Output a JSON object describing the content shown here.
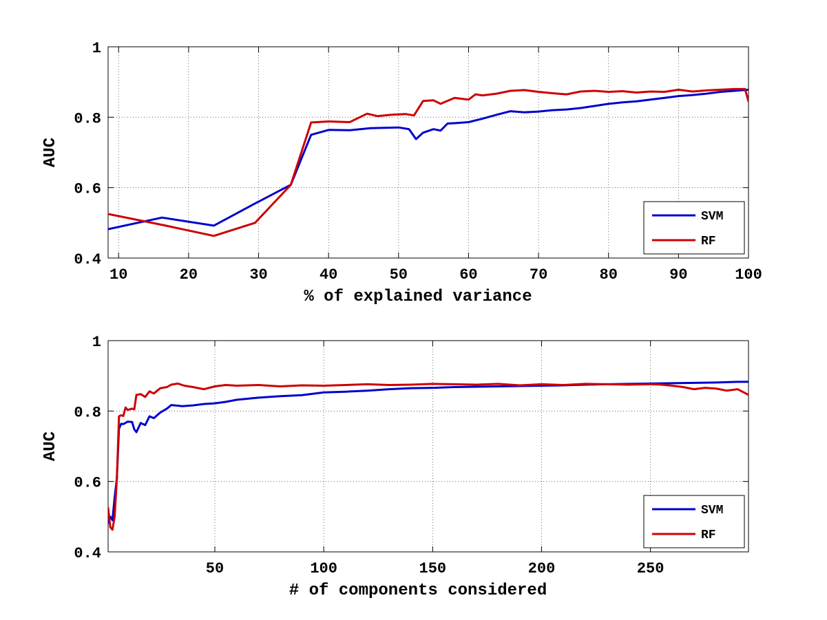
{
  "chart_data": [
    {
      "type": "line",
      "title": "",
      "xlabel": "% of explained variance",
      "ylabel": "AUC",
      "xlim": [
        8.5,
        100
      ],
      "ylim": [
        0.4,
        1.0
      ],
      "xticks": [
        10,
        20,
        30,
        40,
        50,
        60,
        70,
        80,
        90,
        100
      ],
      "xtick_labels": [
        "10",
        "20",
        "30",
        "40",
        "50",
        "60",
        "70",
        "80",
        "90",
        "100"
      ],
      "yticks": [
        0.4,
        0.6,
        0.8,
        1.0
      ],
      "ytick_labels": [
        "0.4",
        "0.6",
        "0.8",
        "1"
      ],
      "grid": true,
      "legend_position": "bottom-right",
      "series": [
        {
          "name": "SVM",
          "color": "#0000cc",
          "x": [
            8.5,
            16.2,
            23.6,
            29.5,
            34.6,
            37.5,
            40,
            43,
            46,
            50,
            51.5,
            52.5,
            53.5,
            55,
            56,
            57,
            58,
            60,
            62,
            64,
            66,
            68,
            70,
            72,
            74,
            76,
            78,
            80,
            82,
            84,
            86,
            88,
            90,
            92,
            94,
            96,
            98,
            100
          ],
          "y": [
            0.482,
            0.515,
            0.492,
            0.555,
            0.608,
            0.75,
            0.764,
            0.763,
            0.769,
            0.771,
            0.766,
            0.738,
            0.756,
            0.766,
            0.762,
            0.782,
            0.783,
            0.786,
            0.796,
            0.807,
            0.817,
            0.814,
            0.816,
            0.82,
            0.822,
            0.826,
            0.832,
            0.838,
            0.842,
            0.845,
            0.85,
            0.855,
            0.86,
            0.863,
            0.867,
            0.872,
            0.875,
            0.878
          ]
        },
        {
          "name": "RF",
          "color": "#cc0000",
          "x": [
            8.5,
            16.5,
            23.6,
            29.5,
            34.6,
            37.5,
            40,
            43,
            45.5,
            47,
            49,
            51,
            52.2,
            53.5,
            55,
            56,
            58,
            60,
            61,
            62,
            64,
            66,
            68,
            70,
            72,
            74,
            76,
            78,
            80,
            82,
            84,
            86,
            88,
            90,
            92,
            94,
            96,
            98,
            99.5,
            100
          ],
          "y": [
            0.525,
            0.493,
            0.463,
            0.5,
            0.608,
            0.785,
            0.788,
            0.786,
            0.81,
            0.803,
            0.807,
            0.809,
            0.805,
            0.846,
            0.848,
            0.838,
            0.855,
            0.85,
            0.865,
            0.862,
            0.867,
            0.875,
            0.877,
            0.872,
            0.868,
            0.865,
            0.873,
            0.875,
            0.872,
            0.874,
            0.87,
            0.873,
            0.872,
            0.878,
            0.873,
            0.876,
            0.878,
            0.88,
            0.88,
            0.845
          ]
        }
      ]
    },
    {
      "type": "line",
      "title": "",
      "xlabel": "# of components considered",
      "ylabel": "AUC",
      "xlim": [
        1,
        295
      ],
      "ylim": [
        0.4,
        1.0
      ],
      "xticks": [
        50,
        100,
        150,
        200,
        250
      ],
      "xtick_labels": [
        "50",
        "100",
        "150",
        "200",
        "250"
      ],
      "yticks": [
        0.4,
        0.6,
        0.8,
        1.0
      ],
      "ytick_labels": [
        "0.4",
        "0.6",
        "0.8",
        "1"
      ],
      "grid": true,
      "legend_position": "bottom-right",
      "series": [
        {
          "name": "SVM",
          "color": "#0000cc",
          "x": [
            1,
            2,
            3,
            4,
            5,
            6,
            7,
            8,
            10,
            12,
            13,
            14,
            16,
            18,
            20,
            22,
            25,
            28,
            30,
            35,
            40,
            45,
            50,
            55,
            60,
            70,
            80,
            90,
            100,
            110,
            120,
            130,
            140,
            150,
            160,
            170,
            180,
            190,
            200,
            210,
            220,
            230,
            240,
            250,
            260,
            270,
            280,
            290,
            295
          ],
          "y": [
            0.482,
            0.5,
            0.49,
            0.555,
            0.608,
            0.75,
            0.764,
            0.763,
            0.77,
            0.769,
            0.748,
            0.74,
            0.766,
            0.76,
            0.785,
            0.78,
            0.796,
            0.807,
            0.817,
            0.814,
            0.816,
            0.82,
            0.822,
            0.826,
            0.832,
            0.838,
            0.842,
            0.845,
            0.853,
            0.855,
            0.858,
            0.862,
            0.865,
            0.866,
            0.868,
            0.869,
            0.87,
            0.871,
            0.872,
            0.873,
            0.875,
            0.876,
            0.877,
            0.878,
            0.879,
            0.88,
            0.881,
            0.883,
            0.883
          ]
        },
        {
          "name": "RF",
          "color": "#cc0000",
          "x": [
            1,
            2,
            3,
            4,
            5,
            6,
            7,
            8,
            9,
            10,
            12,
            13,
            14,
            16,
            18,
            20,
            22,
            25,
            28,
            30,
            33,
            36,
            40,
            45,
            50,
            55,
            60,
            70,
            80,
            90,
            100,
            110,
            120,
            130,
            140,
            150,
            160,
            170,
            180,
            190,
            200,
            210,
            220,
            230,
            240,
            250,
            255,
            260,
            265,
            270,
            275,
            280,
            285,
            290,
            295
          ],
          "y": [
            0.525,
            0.47,
            0.463,
            0.5,
            0.608,
            0.785,
            0.788,
            0.786,
            0.81,
            0.803,
            0.807,
            0.805,
            0.846,
            0.848,
            0.84,
            0.856,
            0.85,
            0.865,
            0.868,
            0.875,
            0.878,
            0.872,
            0.868,
            0.862,
            0.87,
            0.874,
            0.872,
            0.874,
            0.87,
            0.873,
            0.872,
            0.874,
            0.876,
            0.874,
            0.875,
            0.877,
            0.876,
            0.875,
            0.877,
            0.873,
            0.876,
            0.874,
            0.877,
            0.876,
            0.875,
            0.876,
            0.875,
            0.872,
            0.868,
            0.862,
            0.866,
            0.864,
            0.858,
            0.862,
            0.846
          ]
        }
      ]
    }
  ]
}
